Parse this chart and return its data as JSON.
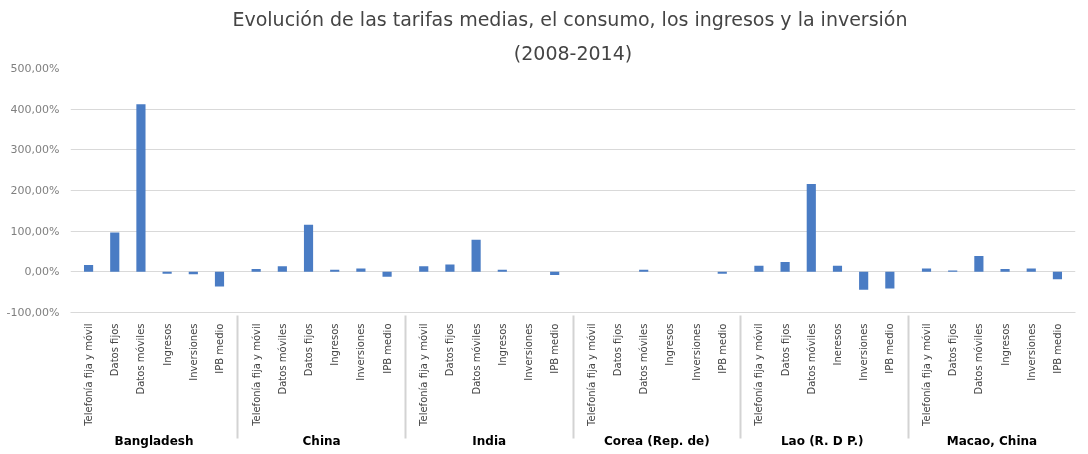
{
  "chart_data": {
    "type": "bar",
    "title": "Evolución de las tarifas medias, el consumo,  los ingresos y la inversión",
    "subtitle": "(2008-2014)",
    "categories": [
      "Telefonía fija y móvil",
      "Datos fijos",
      "Datos móviles",
      "Ingresos",
      "Inversiones",
      "IPB medio",
      "Telefonía fija y móvil",
      "Datos móviles",
      "Datos fijos",
      "Ingresos",
      "Inversiones",
      "IPB medio",
      "Telefonía fija y móvil",
      "Datos fijos",
      "Datos móviles",
      "Ingresos",
      "Inversiones",
      "IPB medio",
      "Telefonía fija y móvil",
      "Datos fijos",
      "Datos móviles",
      "Ingresos",
      "Inversiones",
      "IPB medio",
      "Telefonía fija y móvil",
      "Datos fijos",
      "Datos móviles",
      "Ineresos",
      "Inversiones",
      "IPB medio",
      "Telefonía fija y móvil",
      "Datos fijos",
      "Datos móviles",
      "Ingresos",
      "Inversiones",
      "IPB medio"
    ],
    "values": [
      17,
      97,
      412,
      -5,
      -6,
      -36,
      7,
      14,
      116,
      5,
      8,
      -12,
      14,
      18,
      79,
      5,
      null,
      -8,
      null,
      null,
      5,
      null,
      null,
      -5,
      15,
      24,
      216,
      15,
      -44,
      -41,
      8,
      3,
      39,
      7,
      8,
      -18
    ],
    "color": "#4a7cc4",
    "annotations": [
      "Bangladesh",
      "China",
      "India",
      "Corea (Rep. de)",
      "Lao (R. D  P.)",
      "Macao, China"
    ],
    "ylim": [
      -100,
      500
    ],
    "yticks": [
      {
        "value": -100,
        "label": "-100,00%"
      },
      {
        "value": 0,
        "label": "0,00%"
      },
      {
        "value": 100,
        "label": "100,00%"
      },
      {
        "value": 200,
        "label": "200,00%"
      },
      {
        "value": 300,
        "label": "300,00%"
      },
      {
        "value": 400,
        "label": "400,00%"
      },
      {
        "value": 500,
        "label": "500,00%"
      }
    ],
    "grid": "y"
  }
}
